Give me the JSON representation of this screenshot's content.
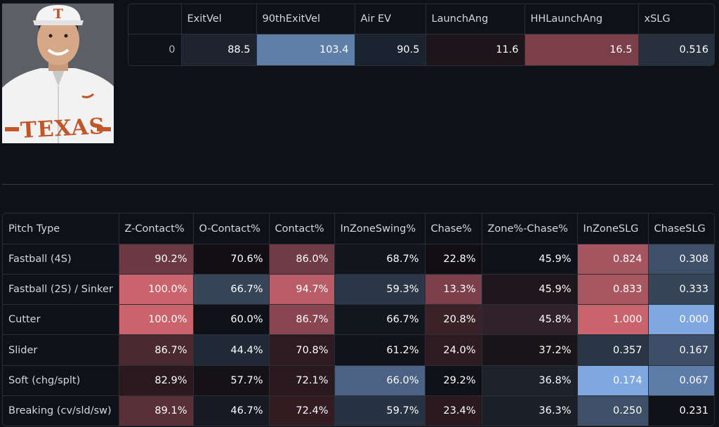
{
  "player_photo": {
    "jersey_text": "TEXAS",
    "cap_letter": "T"
  },
  "summary_table": {
    "columns": [
      "",
      "ExitVel",
      "90thExitVel",
      "Air EV",
      "LaunchAng",
      "HHLaunchAng",
      "xSLG"
    ],
    "rows": [
      {
        "index": "0",
        "cells": [
          "88.5",
          "103.4",
          "90.5",
          "11.6",
          "16.5",
          "0.516"
        ],
        "colors": [
          "#1d2430",
          "#5f7fa8",
          "#1b2230",
          "#1c1519",
          "#7a3f48",
          "#27303d"
        ]
      }
    ]
  },
  "pitch_table": {
    "columns": [
      "Pitch Type",
      "Z-Contact%",
      "O-Contact%",
      "Contact%",
      "InZoneSwing%",
      "Chase%",
      "Zone%-Chase%",
      "InZoneSLG",
      "ChaseSLG"
    ],
    "rows": [
      {
        "label": "Fastball (4S)",
        "cells": [
          "90.2%",
          "70.6%",
          "86.0%",
          "68.7%",
          "22.8%",
          "45.9%",
          "0.824",
          "0.308"
        ],
        "colors": [
          "#6a3942",
          "#120f14",
          "#6f3b44",
          "#12151c",
          "#120f14",
          "#0f1118",
          "#a55560",
          "#3e5068"
        ]
      },
      {
        "label": "Fastball (2S) / Sinker",
        "cells": [
          "100.0%",
          "66.7%",
          "94.7%",
          "59.3%",
          "13.3%",
          "45.9%",
          "0.833",
          "0.333"
        ],
        "colors": [
          "#c9636c",
          "#364557",
          "#b85c65",
          "#2b3646",
          "#7a3f48",
          "#1e161b",
          "#a85660",
          "#364557"
        ]
      },
      {
        "label": "Cutter",
        "cells": [
          "100.0%",
          "60.0%",
          "86.7%",
          "66.7%",
          "20.8%",
          "45.8%",
          "1.000",
          "0.000"
        ],
        "colors": [
          "#c9636c",
          "#0f1116",
          "#8a4650",
          "#12161d",
          "#3a2228",
          "#30212a",
          "#c9636c",
          "#7fa8e0"
        ]
      },
      {
        "label": "Slider",
        "cells": [
          "86.7%",
          "44.4%",
          "70.8%",
          "61.2%",
          "24.0%",
          "37.2%",
          "0.357",
          "0.167"
        ],
        "colors": [
          "#4a2930",
          "#202a36",
          "#2e1b21",
          "#111318",
          "#2e1b21",
          "#1a1519",
          "#2a3545",
          "#3d4e66"
        ]
      },
      {
        "label": "Soft (chg/splt)",
        "cells": [
          "82.9%",
          "57.7%",
          "72.1%",
          "66.0%",
          "29.2%",
          "36.8%",
          "0.174",
          "0.067"
        ],
        "colors": [
          "#2a1a1f",
          "#141216",
          "#2a1a1f",
          "#4b6284",
          "#0f1116",
          "#1b222c",
          "#7fa8e0",
          "#5d7ca7"
        ]
      },
      {
        "label": "Breaking (cv/sld/sw)",
        "cells": [
          "89.1%",
          "46.7%",
          "72.4%",
          "59.7%",
          "23.4%",
          "36.3%",
          "0.250",
          "0.231"
        ],
        "colors": [
          "#5a3038",
          "#171a22",
          "#331d23",
          "#273242",
          "#2a1a1f",
          "#1a1f28",
          "#3e5068",
          "#0f1116"
        ]
      }
    ]
  }
}
